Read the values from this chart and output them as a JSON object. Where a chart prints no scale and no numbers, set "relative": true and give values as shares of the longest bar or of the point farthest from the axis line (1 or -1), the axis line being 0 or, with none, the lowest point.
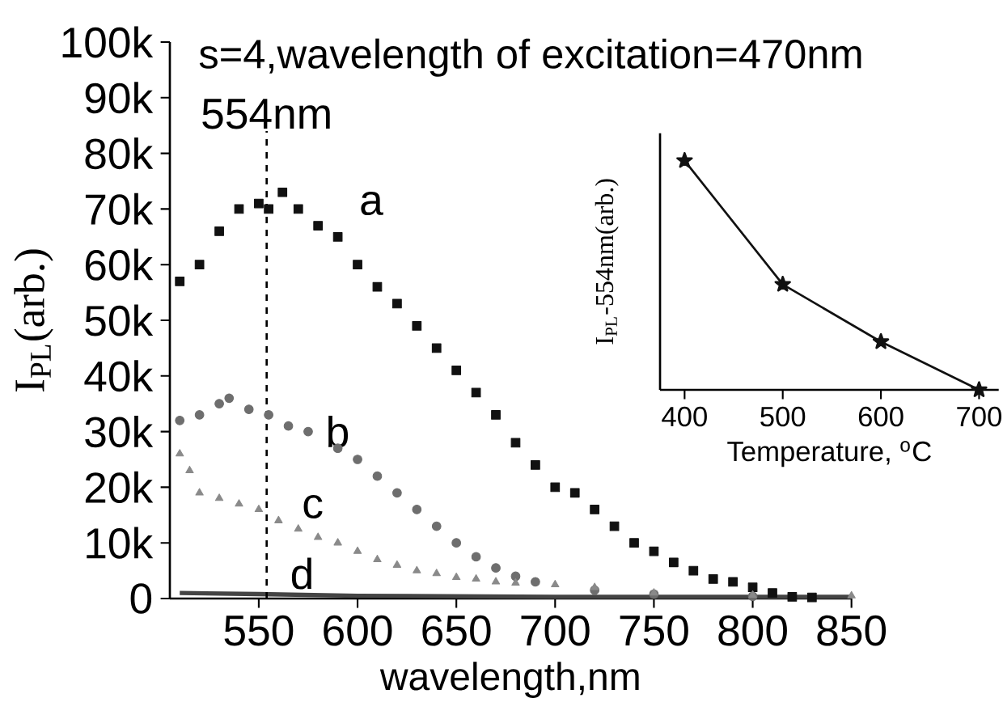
{
  "chart_data": [
    {
      "type": "scatter",
      "title": "s=4,wavelength of excitation=470nm",
      "xlabel": "wavelength,nm",
      "ylabel": "I$_{PL}$(arb.)",
      "xlim": [
        505,
        850
      ],
      "xticks": [
        550,
        600,
        650,
        700,
        750,
        800,
        850
      ],
      "ylim": [
        0,
        100000
      ],
      "yticks": [
        0,
        {
          "value": 10000,
          "label": "10k"
        },
        {
          "value": 20000,
          "label": "20k"
        },
        {
          "value": 30000,
          "label": "30k"
        },
        {
          "value": 40000,
          "label": "40k"
        },
        {
          "value": 50000,
          "label": "50k"
        },
        {
          "value": 60000,
          "label": "60k"
        },
        {
          "value": 70000,
          "label": "70k"
        },
        {
          "value": 80000,
          "label": "80k"
        },
        {
          "value": 90000,
          "label": "90k"
        },
        {
          "value": 100000,
          "label": "100k"
        }
      ],
      "series": [
        {
          "name": "a",
          "color": "#111111",
          "marker": "square",
          "x": [
            510,
            520,
            530,
            540,
            550,
            555,
            562,
            570,
            580,
            590,
            600,
            610,
            620,
            630,
            640,
            650,
            660,
            670,
            680,
            690,
            700,
            710,
            720,
            730,
            740,
            750,
            760,
            770,
            780,
            790,
            800,
            810,
            820,
            830
          ],
          "values": [
            57000,
            60000,
            66000,
            70000,
            71000,
            70000,
            73000,
            70000,
            67000,
            65000,
            60000,
            56000,
            53000,
            49000,
            45000,
            41000,
            37000,
            33000,
            28000,
            24000,
            20000,
            19000,
            16000,
            13000,
            10000,
            8500,
            6500,
            5000,
            3500,
            3000,
            2000,
            1000,
            300,
            200
          ]
        },
        {
          "name": "b",
          "color": "#6e6e6e",
          "marker": "circle",
          "x": [
            510,
            520,
            530,
            535,
            545,
            555,
            565,
            575,
            590,
            600,
            610,
            620,
            630,
            640,
            650,
            660,
            670,
            680,
            690,
            700,
            720,
            750,
            800
          ],
          "values": [
            32000,
            33000,
            35000,
            36000,
            34000,
            33000,
            31000,
            30000,
            27000,
            25000,
            22000,
            19000,
            16000,
            13000,
            10000,
            7500,
            5500,
            4000,
            3000,
            null,
            1500,
            800,
            400
          ]
        },
        {
          "name": "c",
          "color": "#8a8a8a",
          "marker": "triangle",
          "x": [
            510,
            515,
            520,
            530,
            540,
            550,
            560,
            570,
            580,
            590,
            600,
            610,
            620,
            630,
            640,
            650,
            660,
            670,
            680,
            700,
            720,
            750,
            800,
            850
          ],
          "values": [
            26000,
            23000,
            19000,
            18000,
            17000,
            16000,
            14000,
            12500,
            11000,
            10000,
            8500,
            7000,
            6000,
            5000,
            4500,
            3800,
            3500,
            3000,
            2800,
            2500,
            2000,
            1000,
            600,
            500
          ]
        },
        {
          "name": "d",
          "color": "#444444",
          "type": "line",
          "x": [
            510,
            550,
            600,
            700,
            850
          ],
          "values": [
            1000,
            800,
            500,
            300,
            300
          ]
        }
      ],
      "ref_lines": [
        {
          "axis": "x",
          "value": 554,
          "label": "554nm",
          "line_style": "dashed"
        }
      ]
    },
    {
      "type": "line",
      "relative": true,
      "xlabel": "Temperature, $^{o}$C",
      "ylabel": "I$_{PL}$-554nm(arb.)",
      "xlim": [
        375,
        720
      ],
      "xticks": [
        400,
        500,
        600,
        700
      ],
      "marker": "star",
      "line_style": "solid",
      "series": [
        {
          "color": "#111111",
          "x": [
            400,
            500,
            600,
            700
          ],
          "values": [
            1,
            0.46,
            0.21,
            0
          ]
        }
      ]
    }
  ]
}
